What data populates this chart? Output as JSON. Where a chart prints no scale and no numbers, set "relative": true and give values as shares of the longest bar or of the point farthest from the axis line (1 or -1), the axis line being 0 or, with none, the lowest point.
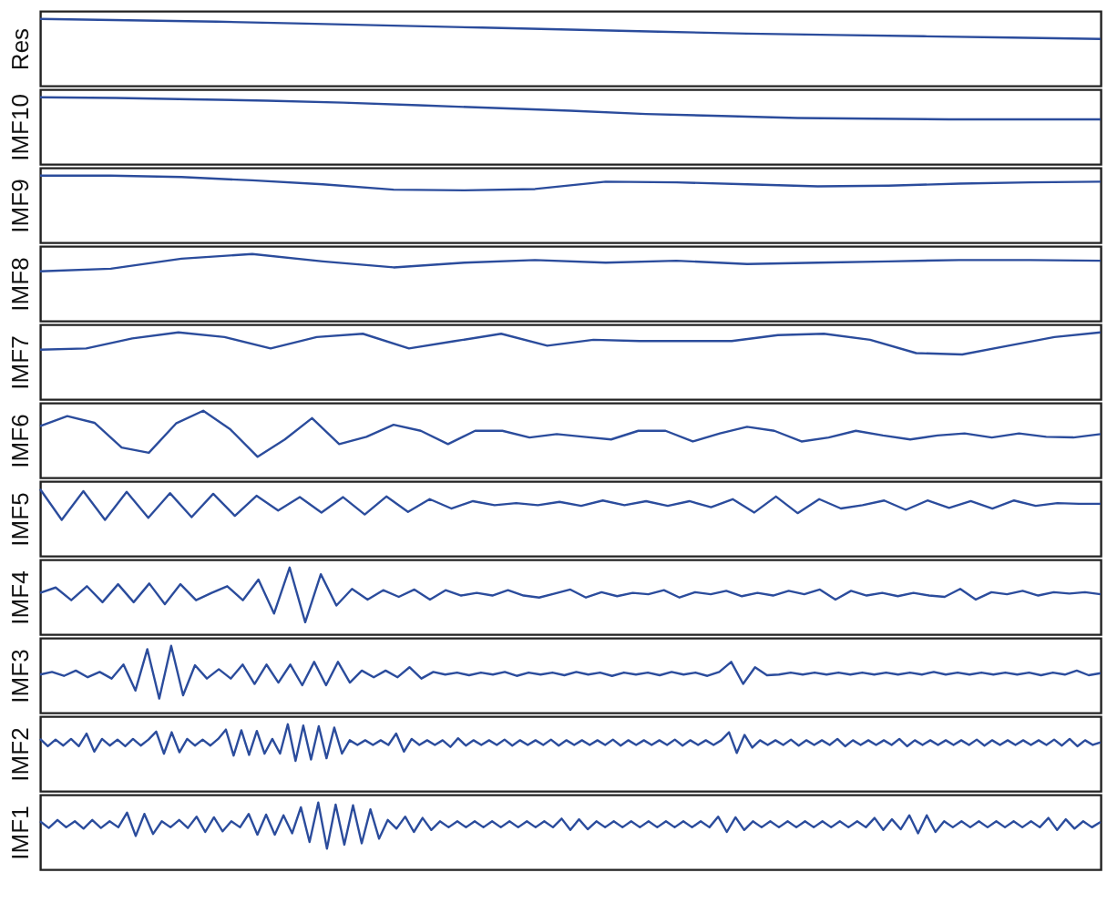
{
  "chart_data": [
    {
      "type": "line",
      "ylabel": "Res",
      "relative": true,
      "tick_labels": false,
      "color": "#2b4c9c",
      "categories": [
        null,
        null,
        null,
        null,
        null,
        null,
        null,
        null,
        null,
        null,
        null,
        null,
        null
      ],
      "values": [
        1,
        0.98,
        0.96,
        0.93,
        0.9,
        0.87,
        0.84,
        0.81,
        0.78,
        0.76,
        0.74,
        0.72,
        0.7
      ]
    },
    {
      "type": "line",
      "ylabel": "IMF10",
      "relative": true,
      "tick_labels": false,
      "color": "#2b4c9c",
      "categories": [
        null,
        null,
        null,
        null,
        null,
        null,
        null,
        null,
        null,
        null,
        null,
        null,
        null,
        null,
        null
      ],
      "values": [
        1,
        0.99,
        0.97,
        0.95,
        0.92,
        0.88,
        0.84,
        0.8,
        0.75,
        0.72,
        0.69,
        0.68,
        0.67,
        0.67,
        0.67
      ]
    },
    {
      "type": "line",
      "ylabel": "IMF9",
      "relative": true,
      "tick_labels": false,
      "color": "#2b4c9c",
      "categories": [
        null,
        null,
        null,
        null,
        null,
        null,
        null,
        null,
        null,
        null,
        null,
        null,
        null,
        null,
        null,
        null
      ],
      "values": [
        1,
        1,
        0.98,
        0.93,
        0.87,
        0.79,
        0.78,
        0.8,
        0.91,
        0.9,
        0.87,
        0.84,
        0.85,
        0.88,
        0.9,
        0.91
      ]
    },
    {
      "type": "line",
      "ylabel": "IMF8",
      "relative": true,
      "tick_labels": false,
      "color": "#2b4c9c",
      "categories": [
        null,
        null,
        null,
        null,
        null,
        null,
        null,
        null,
        null,
        null,
        null,
        null,
        null,
        null,
        null,
        null
      ],
      "values": [
        0.74,
        0.78,
        0.93,
        1,
        0.89,
        0.8,
        0.87,
        0.91,
        0.87,
        0.9,
        0.85,
        0.87,
        0.89,
        0.91,
        0.91,
        0.9
      ]
    },
    {
      "type": "line",
      "ylabel": "IMF7",
      "relative": true,
      "tick_labels": false,
      "color": "#2b4c9c",
      "categories": [
        null,
        null,
        null,
        null,
        null,
        null,
        null,
        null,
        null,
        null,
        null,
        null,
        null,
        null,
        null,
        null,
        null,
        null,
        null,
        null,
        null,
        null,
        null,
        null
      ],
      "values": [
        0.74,
        0.76,
        0.91,
        1,
        0.93,
        0.76,
        0.93,
        0.98,
        0.76,
        0.87,
        0.98,
        0.8,
        0.89,
        0.87,
        0.87,
        0.87,
        0.96,
        0.98,
        0.89,
        0.69,
        0.67,
        0.8,
        0.93,
        1
      ]
    },
    {
      "type": "line",
      "ylabel": "IMF6",
      "relative": true,
      "tick_labels": false,
      "color": "#2b4c9c",
      "categories": [
        null,
        null,
        null,
        null,
        null,
        null,
        null,
        null,
        null,
        null,
        null,
        null,
        null,
        null,
        null,
        null,
        null,
        null,
        null,
        null,
        null,
        null,
        null,
        null,
        null,
        null,
        null,
        null,
        null,
        null,
        null,
        null,
        null,
        null,
        null,
        null,
        null,
        null,
        null,
        null
      ],
      "values": [
        0.77,
        0.92,
        0.82,
        0.45,
        0.37,
        0.81,
        1,
        0.72,
        0.31,
        0.57,
        0.89,
        0.5,
        0.61,
        0.79,
        0.7,
        0.5,
        0.7,
        0.7,
        0.6,
        0.65,
        0.61,
        0.57,
        0.7,
        0.7,
        0.54,
        0.66,
        0.76,
        0.7,
        0.54,
        0.6,
        0.7,
        0.63,
        0.57,
        0.63,
        0.66,
        0.6,
        0.66,
        0.61,
        0.6,
        0.65
      ]
    },
    {
      "type": "line",
      "ylabel": "IMF5",
      "relative": true,
      "tick_labels": false,
      "color": "#2b4c9c",
      "categories": [
        null,
        null,
        null,
        null,
        null,
        null,
        null,
        null,
        null,
        null,
        null,
        null,
        null,
        null,
        null,
        null,
        null,
        null,
        null,
        null,
        null,
        null,
        null,
        null,
        null,
        null,
        null,
        null,
        null,
        null,
        null,
        null,
        null,
        null,
        null,
        null,
        null,
        null,
        null,
        null,
        null,
        null,
        null,
        null,
        null,
        null,
        null,
        null,
        null,
        null
      ],
      "values": [
        1,
        0.54,
        0.97,
        0.54,
        0.96,
        0.57,
        0.94,
        0.58,
        0.93,
        0.6,
        0.9,
        0.68,
        0.88,
        0.65,
        0.88,
        0.62,
        0.89,
        0.66,
        0.85,
        0.71,
        0.82,
        0.76,
        0.79,
        0.76,
        0.81,
        0.75,
        0.83,
        0.76,
        0.82,
        0.75,
        0.82,
        0.73,
        0.85,
        0.65,
        0.89,
        0.64,
        0.85,
        0.71,
        0.76,
        0.83,
        0.69,
        0.83,
        0.72,
        0.82,
        0.71,
        0.83,
        0.75,
        0.79,
        0.78,
        0.78
      ]
    },
    {
      "type": "line",
      "ylabel": "IMF4",
      "relative": true,
      "tick_labels": false,
      "color": "#2b4c9c",
      "categories": [
        null,
        null,
        null,
        null,
        null,
        null,
        null,
        null,
        null,
        null,
        null,
        null,
        null,
        null,
        null,
        null,
        null,
        null,
        null,
        null,
        null,
        null,
        null,
        null,
        null,
        null,
        null,
        null,
        null,
        null,
        null,
        null,
        null,
        null,
        null,
        null,
        null,
        null,
        null,
        null,
        null,
        null,
        null,
        null,
        null,
        null,
        null,
        null,
        null,
        null,
        null,
        null,
        null,
        null,
        null,
        null,
        null,
        null,
        null,
        null,
        null,
        null,
        null,
        null,
        null,
        null,
        null,
        null,
        null
      ],
      "values": [
        0.62,
        0.7,
        0.51,
        0.72,
        0.48,
        0.75,
        0.48,
        0.76,
        0.45,
        0.75,
        0.51,
        0.62,
        0.72,
        0.51,
        0.82,
        0.31,
        1,
        0.18,
        0.9,
        0.43,
        0.68,
        0.52,
        0.66,
        0.56,
        0.67,
        0.52,
        0.66,
        0.58,
        0.62,
        0.58,
        0.66,
        0.58,
        0.55,
        0.61,
        0.67,
        0.55,
        0.63,
        0.57,
        0.62,
        0.6,
        0.66,
        0.55,
        0.63,
        0.6,
        0.65,
        0.57,
        0.62,
        0.58,
        0.65,
        0.6,
        0.67,
        0.52,
        0.65,
        0.58,
        0.62,
        0.57,
        0.62,
        0.58,
        0.56,
        0.68,
        0.52,
        0.63,
        0.6,
        0.65,
        0.58,
        0.63,
        0.61,
        0.63,
        0.6
      ]
    },
    {
      "type": "line",
      "ylabel": "IMF3",
      "relative": true,
      "tick_labels": false,
      "color": "#2b4c9c",
      "categories": [
        null,
        null,
        null,
        null,
        null,
        null,
        null,
        null,
        null,
        null,
        null,
        null,
        null,
        null,
        null,
        null,
        null,
        null,
        null,
        null,
        null,
        null,
        null,
        null,
        null,
        null,
        null,
        null,
        null,
        null,
        null,
        null,
        null,
        null,
        null,
        null,
        null,
        null,
        null,
        null,
        null,
        null,
        null,
        null,
        null,
        null,
        null,
        null,
        null,
        null,
        null,
        null,
        null,
        null,
        null,
        null,
        null,
        null,
        null,
        null,
        null,
        null,
        null,
        null,
        null,
        null,
        null,
        null,
        null,
        null,
        null,
        null,
        null,
        null,
        null,
        null,
        null,
        null,
        null,
        null,
        null,
        null,
        null,
        null,
        null,
        null,
        null,
        null,
        null,
        null
      ],
      "values": [
        0.57,
        0.61,
        0.55,
        0.63,
        0.53,
        0.61,
        0.51,
        0.72,
        0.33,
        0.95,
        0.21,
        1,
        0.26,
        0.71,
        0.51,
        0.65,
        0.51,
        0.72,
        0.43,
        0.72,
        0.45,
        0.72,
        0.41,
        0.76,
        0.41,
        0.76,
        0.45,
        0.63,
        0.53,
        0.63,
        0.53,
        0.68,
        0.51,
        0.61,
        0.57,
        0.6,
        0.56,
        0.6,
        0.57,
        0.61,
        0.55,
        0.6,
        0.57,
        0.6,
        0.56,
        0.61,
        0.57,
        0.6,
        0.55,
        0.6,
        0.57,
        0.6,
        0.56,
        0.61,
        0.57,
        0.6,
        0.55,
        0.61,
        0.76,
        0.43,
        0.68,
        0.56,
        0.57,
        0.6,
        0.57,
        0.6,
        0.57,
        0.6,
        0.57,
        0.6,
        0.57,
        0.6,
        0.57,
        0.6,
        0.57,
        0.61,
        0.57,
        0.6,
        0.57,
        0.6,
        0.57,
        0.6,
        0.57,
        0.6,
        0.56,
        0.6,
        0.57,
        0.63,
        0.56,
        0.59
      ]
    },
    {
      "type": "line",
      "ylabel": "IMF2",
      "relative": true,
      "tick_labels": false,
      "color": "#2b4c9c",
      "categories": [
        null,
        null,
        null,
        null,
        null,
        null,
        null,
        null,
        null,
        null,
        null,
        null,
        null,
        null,
        null,
        null,
        null,
        null,
        null,
        null,
        null,
        null,
        null,
        null,
        null,
        null,
        null,
        null,
        null,
        null,
        null,
        null,
        null,
        null,
        null,
        null,
        null,
        null,
        null,
        null,
        null,
        null,
        null,
        null,
        null,
        null,
        null,
        null,
        null,
        null,
        null,
        null,
        null,
        null,
        null,
        null,
        null,
        null,
        null,
        null,
        null,
        null,
        null,
        null,
        null,
        null,
        null,
        null,
        null,
        null,
        null,
        null,
        null,
        null,
        null,
        null,
        null,
        null,
        null,
        null,
        null,
        null,
        null,
        null,
        null,
        null,
        null,
        null,
        null,
        null,
        null,
        null,
        null,
        null,
        null,
        null,
        null,
        null,
        null,
        null,
        null,
        null,
        null,
        null,
        null,
        null,
        null,
        null,
        null,
        null,
        null,
        null,
        null,
        null,
        null,
        null,
        null,
        null,
        null,
        null,
        null,
        null,
        null,
        null,
        null,
        null,
        null,
        null,
        null,
        null,
        null,
        null,
        null,
        null,
        null,
        null,
        null,
        null
      ],
      "values": [
        0.78,
        0.67,
        0.77,
        0.68,
        0.78,
        0.67,
        0.86,
        0.59,
        0.78,
        0.68,
        0.77,
        0.67,
        0.78,
        0.68,
        0.77,
        0.89,
        0.56,
        0.88,
        0.58,
        0.78,
        0.68,
        0.77,
        0.68,
        0.78,
        0.92,
        0.53,
        0.91,
        0.54,
        0.9,
        0.56,
        0.78,
        0.56,
        1,
        0.45,
        0.98,
        0.47,
        0.97,
        0.49,
        0.95,
        0.56,
        0.76,
        0.69,
        0.76,
        0.69,
        0.76,
        0.69,
        0.86,
        0.59,
        0.78,
        0.69,
        0.76,
        0.69,
        0.76,
        0.66,
        0.79,
        0.68,
        0.76,
        0.69,
        0.76,
        0.69,
        0.77,
        0.68,
        0.76,
        0.69,
        0.76,
        0.69,
        0.77,
        0.68,
        0.76,
        0.69,
        0.76,
        0.69,
        0.76,
        0.69,
        0.77,
        0.68,
        0.76,
        0.69,
        0.76,
        0.69,
        0.76,
        0.69,
        0.77,
        0.68,
        0.76,
        0.69,
        0.76,
        0.69,
        0.76,
        0.88,
        0.57,
        0.84,
        0.65,
        0.76,
        0.69,
        0.76,
        0.69,
        0.77,
        0.68,
        0.76,
        0.69,
        0.76,
        0.69,
        0.78,
        0.67,
        0.76,
        0.69,
        0.76,
        0.69,
        0.76,
        0.69,
        0.78,
        0.67,
        0.76,
        0.69,
        0.76,
        0.69,
        0.76,
        0.69,
        0.76,
        0.69,
        0.77,
        0.68,
        0.76,
        0.69,
        0.76,
        0.69,
        0.76,
        0.69,
        0.76,
        0.69,
        0.77,
        0.68,
        0.78,
        0.67,
        0.76,
        0.69,
        0.73
      ]
    },
    {
      "type": "line",
      "ylabel": "IMF1",
      "relative": true,
      "tick_labels": false,
      "color": "#2b4c9c",
      "categories": [
        null,
        null,
        null,
        null,
        null,
        null,
        null,
        null,
        null,
        null,
        null,
        null,
        null,
        null,
        null,
        null,
        null,
        null,
        null,
        null,
        null,
        null,
        null,
        null,
        null,
        null,
        null,
        null,
        null,
        null,
        null,
        null,
        null,
        null,
        null,
        null,
        null,
        null,
        null,
        null,
        null,
        null,
        null,
        null,
        null,
        null,
        null,
        null,
        null,
        null,
        null,
        null,
        null,
        null,
        null,
        null,
        null,
        null,
        null,
        null,
        null,
        null,
        null,
        null,
        null,
        null,
        null,
        null,
        null,
        null,
        null,
        null,
        null,
        null,
        null,
        null,
        null,
        null,
        null,
        null,
        null,
        null,
        null,
        null,
        null,
        null,
        null,
        null,
        null,
        null,
        null,
        null,
        null,
        null,
        null,
        null,
        null,
        null,
        null,
        null,
        null,
        null,
        null,
        null,
        null,
        null,
        null,
        null,
        null,
        null,
        null,
        null,
        null,
        null,
        null,
        null,
        null,
        null,
        null,
        null,
        null,
        null,
        null
      ],
      "values": [
        0.72,
        0.62,
        0.74,
        0.63,
        0.72,
        0.61,
        0.74,
        0.62,
        0.72,
        0.63,
        0.85,
        0.5,
        0.83,
        0.53,
        0.72,
        0.63,
        0.74,
        0.62,
        0.79,
        0.56,
        0.78,
        0.57,
        0.72,
        0.63,
        0.83,
        0.52,
        0.82,
        0.52,
        0.81,
        0.54,
        0.93,
        0.41,
        1,
        0.31,
        0.97,
        0.37,
        0.96,
        0.39,
        0.9,
        0.46,
        0.74,
        0.61,
        0.79,
        0.56,
        0.77,
        0.59,
        0.72,
        0.63,
        0.72,
        0.63,
        0.72,
        0.63,
        0.72,
        0.63,
        0.72,
        0.63,
        0.72,
        0.63,
        0.72,
        0.63,
        0.76,
        0.59,
        0.75,
        0.6,
        0.72,
        0.63,
        0.72,
        0.63,
        0.72,
        0.63,
        0.72,
        0.63,
        0.72,
        0.63,
        0.72,
        0.63,
        0.72,
        0.63,
        0.79,
        0.56,
        0.78,
        0.59,
        0.72,
        0.63,
        0.72,
        0.63,
        0.72,
        0.63,
        0.72,
        0.63,
        0.72,
        0.63,
        0.72,
        0.63,
        0.72,
        0.63,
        0.77,
        0.59,
        0.75,
        0.6,
        0.81,
        0.54,
        0.81,
        0.56,
        0.72,
        0.63,
        0.72,
        0.63,
        0.72,
        0.63,
        0.72,
        0.63,
        0.72,
        0.63,
        0.72,
        0.63,
        0.77,
        0.59,
        0.75,
        0.61,
        0.72,
        0.63,
        0.71
      ]
    }
  ]
}
